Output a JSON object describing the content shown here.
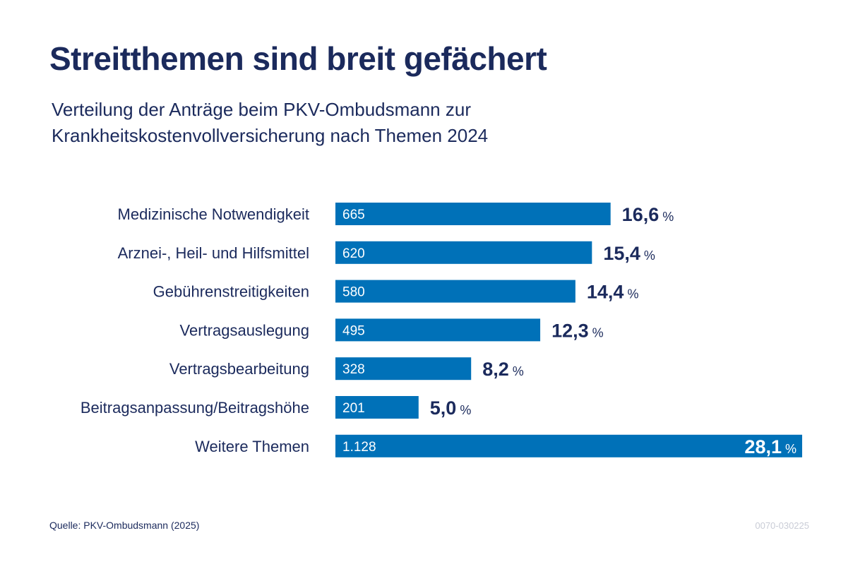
{
  "header": {
    "title": "Streitthemen sind breit gefächert",
    "subtitle_line1": "Verteilung der Anträge beim PKV-Ombudsmann zur",
    "subtitle_line2": "Krankheitskostenvollversicherung nach Themen 2024"
  },
  "footer": {
    "source": "Quelle: PKV-Ombudsmann (2025)",
    "code": "0070-030225"
  },
  "colors": {
    "bar": "#0071b8",
    "text": "#1b2a5c",
    "bar_label": "#ffffff",
    "code": "#c9ccd6"
  },
  "chart_data": {
    "type": "bar",
    "orientation": "horizontal",
    "unit": "%",
    "categories": [
      "Medizinische Notwendigkeit",
      "Arznei-, Heil- und Hilfsmittel",
      "Gebührenstreitigkeiten",
      "Vertragsauslegung",
      "Vertragsbearbeitung",
      "Beitragsanpassung/Beitragshöhe",
      "Weitere Themen"
    ],
    "series": [
      {
        "values": [
          665,
          620,
          580,
          495,
          328,
          201,
          1128
        ],
        "value_labels": [
          "665",
          "620",
          "580",
          "495",
          "328",
          "201",
          "1.128"
        ],
        "percent_labels": [
          "16,6",
          "15,4",
          "14,4",
          "12,3",
          "8,2",
          "5,0",
          "28,1"
        ]
      }
    ],
    "grid": false,
    "legend": "none"
  }
}
